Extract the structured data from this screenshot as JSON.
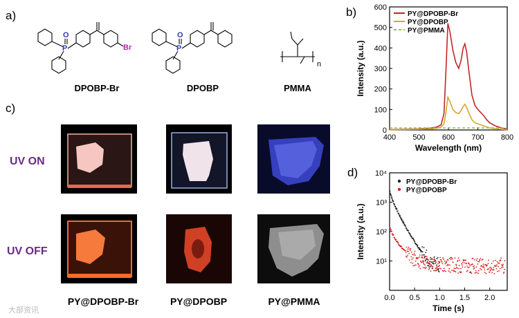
{
  "figure": {
    "panel_labels": {
      "a": "a)",
      "b": "b)",
      "c": "c)",
      "d": "d)"
    },
    "molecules": [
      {
        "label": "DPOBP-Br",
        "bromo_label": "Br",
        "oxygen_label": "O",
        "phosphorus_label": "P"
      },
      {
        "label": "DPOBP",
        "oxygen_label": "O",
        "phosphorus_label": "P"
      },
      {
        "label": "PMMA",
        "subscript": "n"
      }
    ],
    "photos": {
      "row_labels": [
        "UV ON",
        "UV OFF"
      ],
      "column_labels": [
        "PY@DPOBP-Br",
        "PY@DPOBP",
        "PY@PMMA"
      ]
    },
    "watermark": "大部资讯",
    "colors": {
      "red": "#c0262a",
      "yellow": "#d4a72c",
      "green": "#8ec24a",
      "purple": "#6a2a82",
      "magenta": "#c21cc2",
      "blue": "#2f3db0"
    }
  },
  "chart_data": [
    {
      "type": "line",
      "xlabel": "Wavelength (nm)",
      "ylabel": "Intensity (a.u.)",
      "xlim": [
        400,
        800
      ],
      "ylim": [
        0,
        600
      ],
      "xticks": [
        400,
        500,
        600,
        700,
        800
      ],
      "yticks": [
        0,
        100,
        200,
        300,
        400,
        500,
        600
      ],
      "legend_position": "top-right",
      "series": [
        {
          "name": "PY@DPOBP-Br",
          "color": "#c0262a",
          "x": [
            400,
            450,
            500,
            540,
            560,
            575,
            585,
            592,
            598,
            605,
            615,
            625,
            635,
            643,
            650,
            656,
            662,
            670,
            680,
            690,
            700,
            710,
            720,
            730,
            740,
            760,
            780,
            800
          ],
          "y": [
            2,
            3,
            5,
            9,
            14,
            25,
            80,
            300,
            520,
            480,
            390,
            330,
            300,
            340,
            400,
            420,
            380,
            280,
            170,
            120,
            100,
            85,
            70,
            50,
            35,
            20,
            10,
            5
          ]
        },
        {
          "name": "PY@DPOBP",
          "color": "#d4a72c",
          "x": [
            400,
            450,
            500,
            540,
            560,
            575,
            585,
            592,
            598,
            605,
            615,
            625,
            635,
            643,
            650,
            656,
            662,
            670,
            680,
            690,
            700,
            710,
            720,
            730,
            740,
            760,
            780,
            800
          ],
          "y": [
            1,
            2,
            3,
            5,
            8,
            14,
            30,
            90,
            160,
            140,
            100,
            85,
            80,
            95,
            115,
            125,
            110,
            80,
            50,
            35,
            30,
            25,
            20,
            15,
            10,
            6,
            3,
            1
          ]
        },
        {
          "name": "PY@PMMA",
          "color": "#8ec24a",
          "x": [
            400,
            500,
            600,
            700,
            800
          ],
          "y": [
            10,
            10,
            10,
            10,
            10
          ]
        }
      ]
    },
    {
      "type": "scatter",
      "xlabel": "Time (s)",
      "ylabel": "Intensity  (a.u.)",
      "xlim": [
        0,
        2.35
      ],
      "ylim": [
        1,
        10000
      ],
      "yscale": "log",
      "xticks": [
        0.0,
        0.5,
        1.0,
        1.5,
        2.0
      ],
      "yticks": [
        10,
        100,
        1000,
        10000
      ],
      "ytick_labels": [
        "10¹",
        "10²",
        "10³",
        "10⁴"
      ],
      "legend_position": "top-right",
      "series": [
        {
          "name": "PY@DPOBP-Br",
          "color": "#222222",
          "x": [
            0,
            0.05,
            0.1,
            0.2,
            0.3,
            0.4,
            0.5,
            0.6,
            0.7,
            0.8,
            0.9,
            1.0
          ],
          "y": [
            2500,
            1300,
            800,
            350,
            170,
            85,
            45,
            25,
            15,
            10,
            8,
            7
          ]
        },
        {
          "name": "PY@DPOBP",
          "color": "#e0201e",
          "x": [
            0,
            0.05,
            0.1,
            0.2,
            0.3,
            0.5,
            0.7,
            1.0,
            1.5,
            2.0,
            2.3
          ],
          "y": [
            150,
            90,
            60,
            35,
            22,
            12,
            9,
            8,
            7,
            7,
            7
          ]
        }
      ]
    }
  ]
}
